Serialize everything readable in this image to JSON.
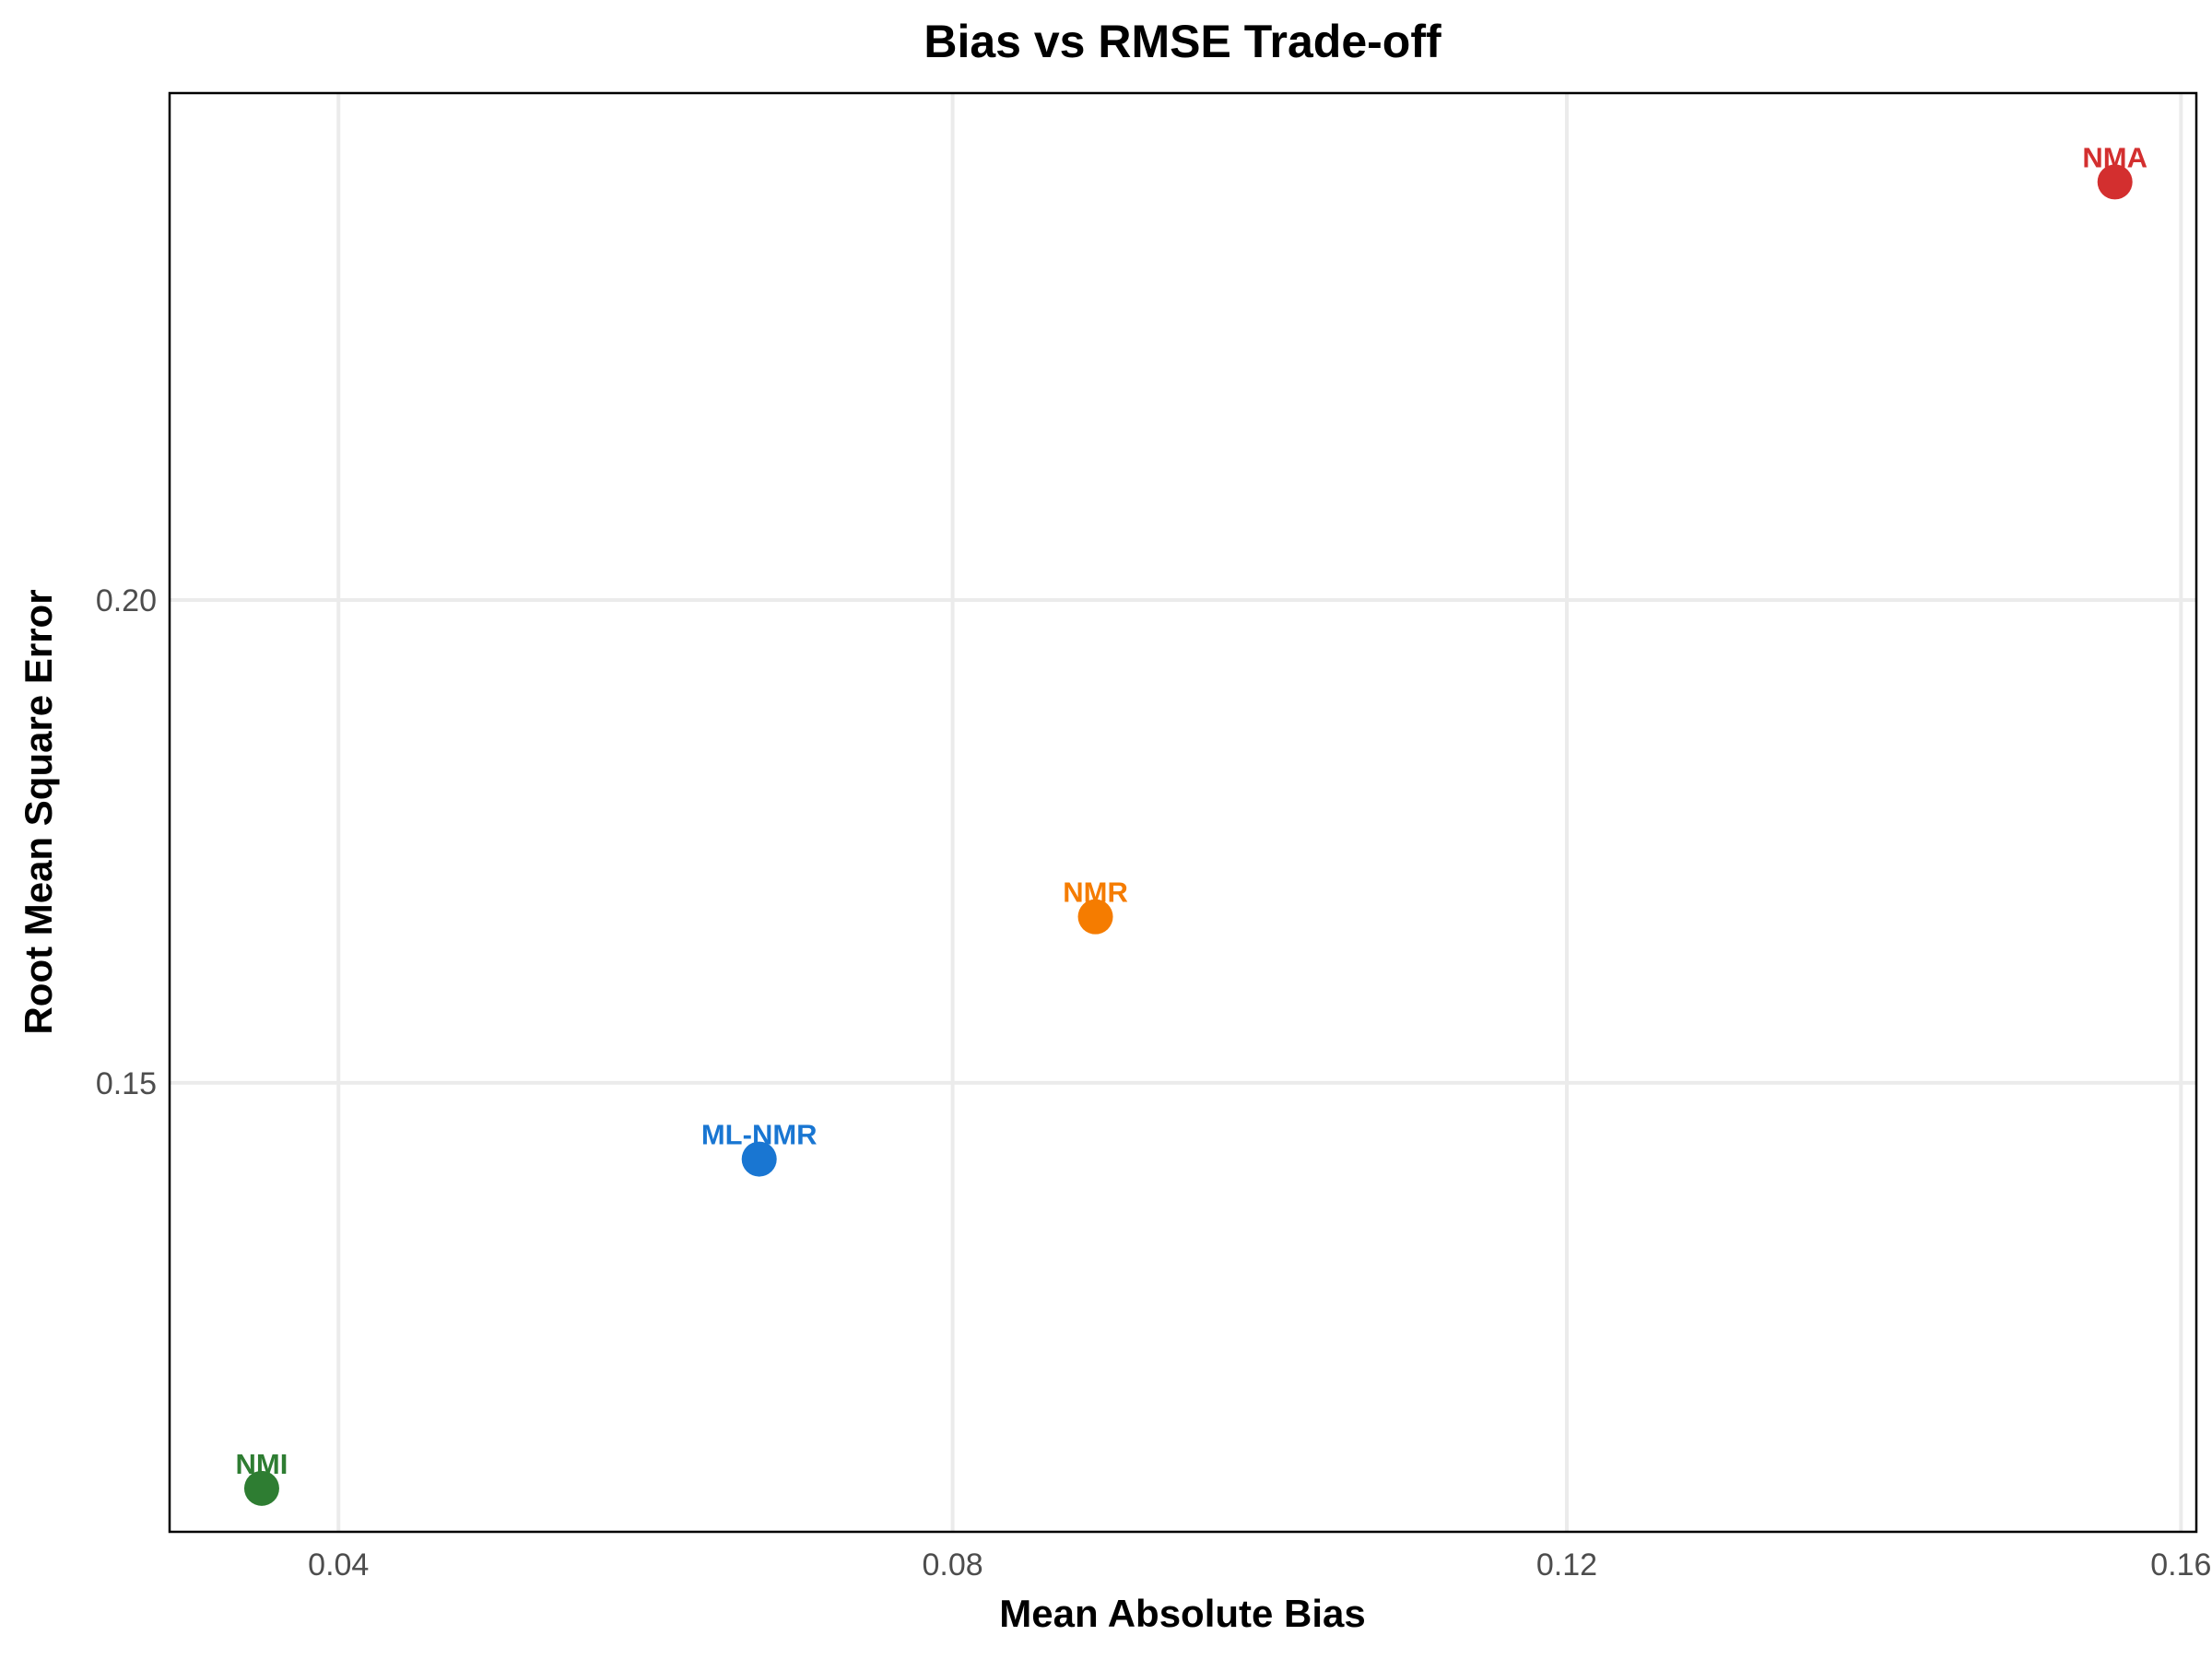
{
  "chart_data": {
    "type": "scatter",
    "title": "Bias vs RMSE Trade-off",
    "xlabel": "Mean Absolute Bias",
    "ylabel": "Root Mean Square Error",
    "xlim": [
      0.029,
      0.161
    ],
    "ylim": [
      0.1035,
      0.2525
    ],
    "xticks": [
      0.04,
      0.08,
      0.12,
      0.16
    ],
    "xtick_labels": [
      "0.04",
      "0.08",
      "0.12",
      "0.16"
    ],
    "yticks": [
      0.15,
      0.2
    ],
    "ytick_labels": [
      "0.15",
      "0.20"
    ],
    "grid": true,
    "legend": "none",
    "points": [
      {
        "label": "NMA",
        "x": 0.1557,
        "y": 0.2433,
        "color": "#d32f2f"
      },
      {
        "label": "NMR",
        "x": 0.0893,
        "y": 0.1672,
        "color": "#f57c00"
      },
      {
        "label": "ML-NMR",
        "x": 0.0674,
        "y": 0.1421,
        "color": "#1976d2"
      },
      {
        "label": "NMI",
        "x": 0.035,
        "y": 0.108,
        "color": "#2e7d32"
      }
    ]
  }
}
